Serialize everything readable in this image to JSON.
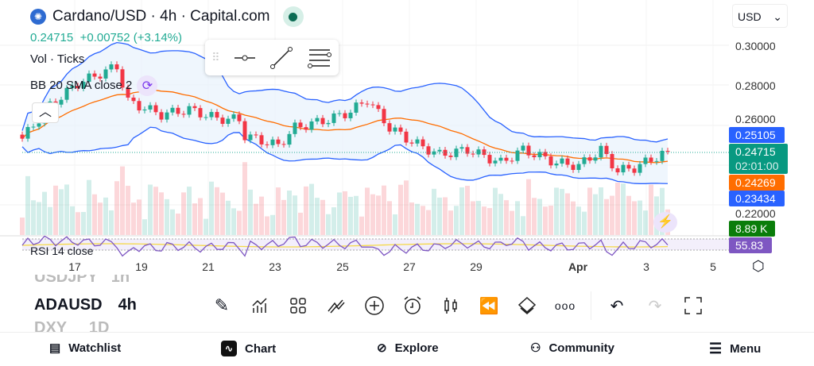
{
  "header": {
    "symbol_title": "Cardano/USD · 4h · Capital.com",
    "last": "0.24715",
    "change": "+0.00752 (+3.14%)",
    "market_status": "open",
    "currency": "USD"
  },
  "indicators": {
    "volume": "Vol · Ticks",
    "bb": "BB 20 SMA close 2",
    "rsi": "RSI 14 close"
  },
  "price_axis": {
    "ticks": [
      "0.30000",
      "0.28000",
      "0.26000",
      "0.22000"
    ]
  },
  "price_tags": {
    "bb_upper": "0.25105",
    "last": "0.24715",
    "countdown": "02:01:00",
    "bb_basis": "0.24269",
    "bb_lower": "0.23434",
    "volume": "8.89 K",
    "rsi": "55.83"
  },
  "colors": {
    "up": "#22ab94",
    "down": "#f23645",
    "bb_band": "#2962ff",
    "bb_basis": "#ff6d00",
    "rsi": "#7e57c2",
    "rsi_ma": "#f5d94a",
    "volume_tag": "#0a7d0a"
  },
  "date_axis": [
    "17",
    "19",
    "21",
    "23",
    "25",
    "27",
    "29",
    "Apr",
    "3",
    "5"
  ],
  "price_path": [
    [
      0,
      0.2535
    ],
    [
      5,
      0.27
    ],
    [
      10,
      0.281
    ],
    [
      17,
      0.2895
    ],
    [
      19,
      0.272
    ],
    [
      25,
      0.2655
    ],
    [
      30,
      0.268
    ],
    [
      35,
      0.2635
    ],
    [
      39,
      0.263
    ],
    [
      40,
      0.255
    ],
    [
      46,
      0.25
    ],
    [
      49,
      0.259
    ],
    [
      55,
      0.263
    ],
    [
      59,
      0.267
    ],
    [
      62,
      0.273
    ],
    [
      66,
      0.259
    ],
    [
      70,
      0.252
    ],
    [
      75,
      0.2455
    ],
    [
      80,
      0.248
    ],
    [
      86,
      0.2415
    ],
    [
      90,
      0.248
    ],
    [
      96,
      0.2415
    ],
    [
      100,
      0.24
    ],
    [
      104,
      0.248
    ],
    [
      107,
      0.2375
    ],
    [
      110,
      0.239
    ],
    [
      116,
      0.24715
    ]
  ],
  "watchlist_peek": [
    {
      "symbol": "USDJPY",
      "interval": "1h"
    },
    {
      "symbol": "ADAUSD",
      "interval": "4h"
    },
    {
      "symbol": "DXY",
      "interval": "1D"
    }
  ],
  "toolbar": [
    "pencil",
    "indicators",
    "layouts",
    "patterns",
    "add",
    "alert",
    "candles",
    "replay",
    "layers",
    "more",
    "undo",
    "redo",
    "fullscreen"
  ],
  "nav": {
    "watchlist": "Watchlist",
    "chart": "Chart",
    "explore": "Explore",
    "community": "Community",
    "menu": "Menu"
  }
}
